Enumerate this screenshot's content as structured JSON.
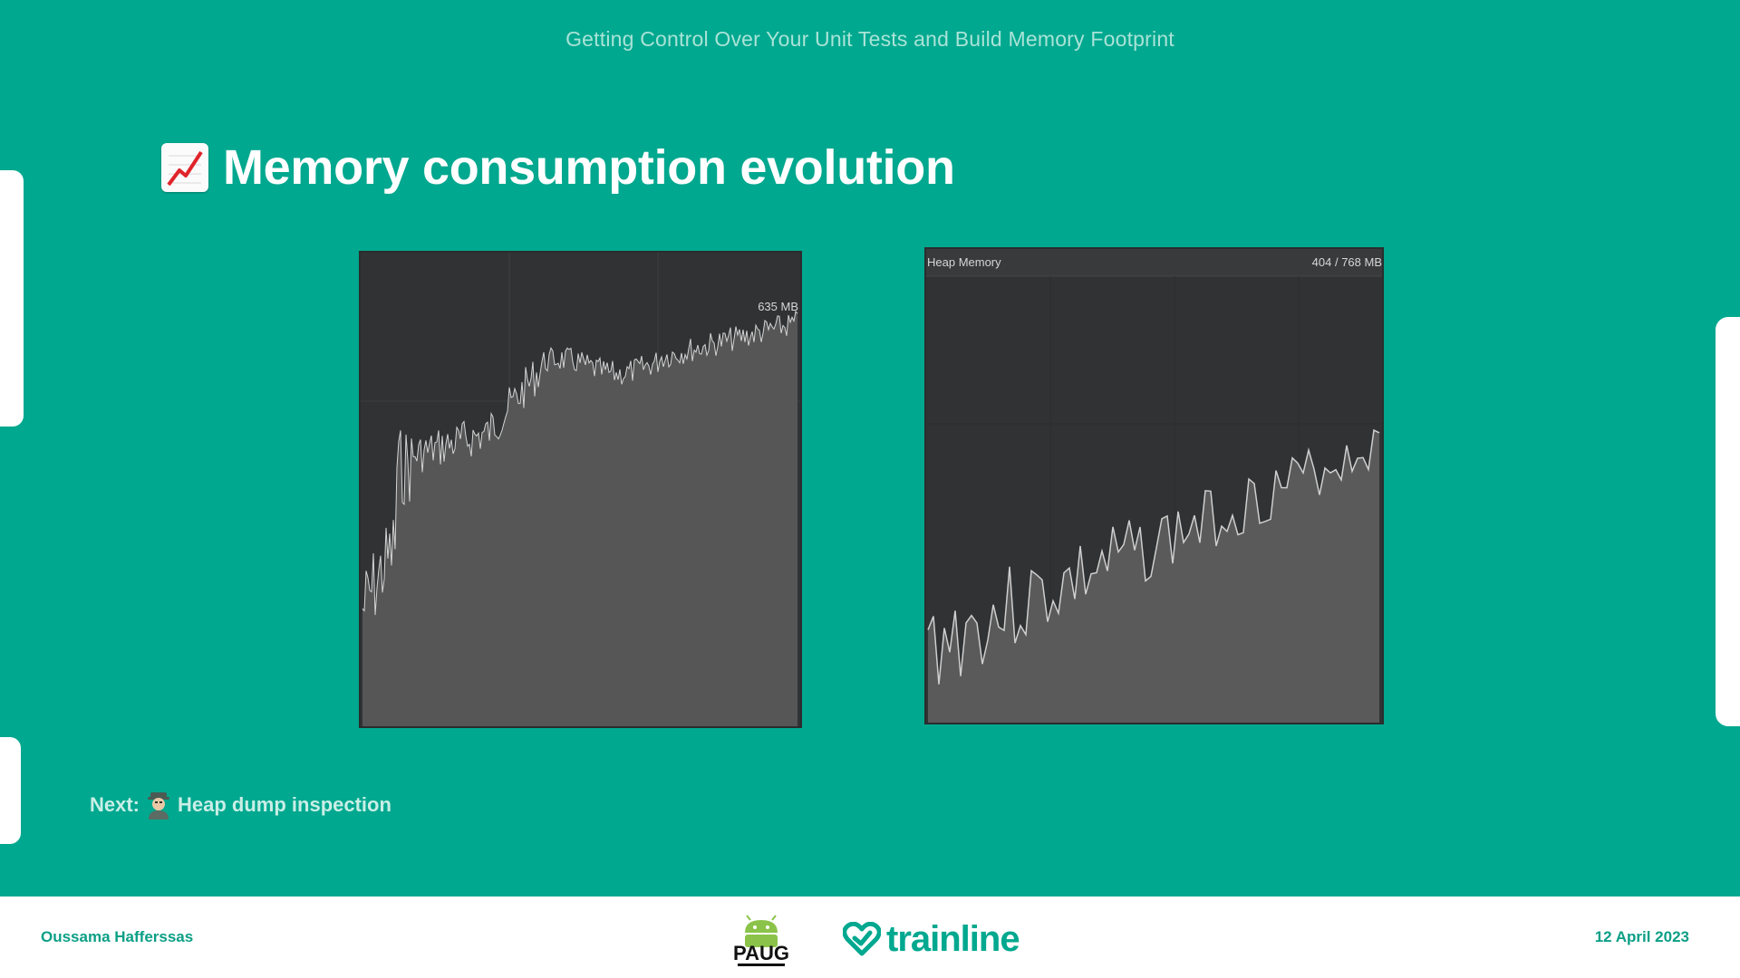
{
  "slide": {
    "doc_title": "Getting Control Over Your Unit Tests and Build Memory Footprint",
    "heading": "Memory consumption evolution",
    "heading_icon": "chart-increasing-icon",
    "next_prefix": "Next:",
    "next_icon": "detective-icon",
    "next_text": "Heap dump inspection"
  },
  "panels": {
    "left": {
      "value_label": "635 MB"
    },
    "right": {
      "title": "Heap Memory",
      "usage": "404 / 768 MB"
    }
  },
  "footer": {
    "author": "Oussama Hafferssas",
    "date": "12 April 2023",
    "logo_paug": "PAUG",
    "logo_trainline": "trainline"
  },
  "colors": {
    "slide_bg": "#00a88f",
    "panel_bg": "#303234",
    "area_fill": "#565656",
    "line": "#d4d4d4"
  }
}
